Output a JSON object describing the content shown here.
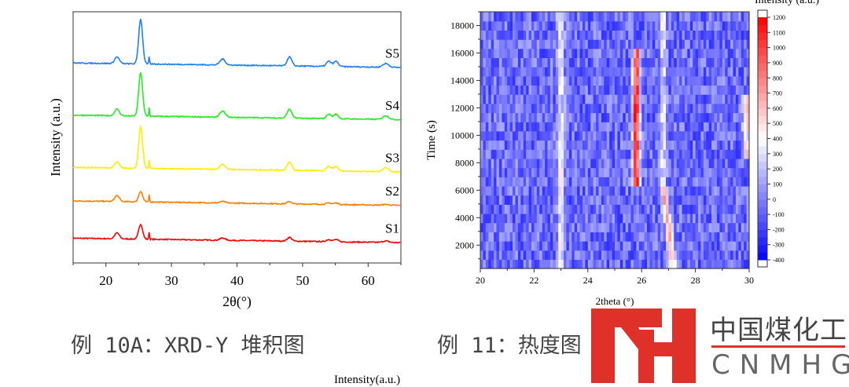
{
  "chart_data": [
    {
      "type": "line",
      "title": "",
      "xlabel": "2θ(°)",
      "ylabel": "Intensity (a.u.)",
      "xlim": [
        15,
        65
      ],
      "xticks": [
        "20",
        "30",
        "40",
        "50",
        "60"
      ],
      "stacked": true,
      "grid": false,
      "peaks_2theta": [
        21.7,
        25.3,
        26.6,
        37.8,
        48.0,
        54.0,
        55.1,
        62.7
      ],
      "series": [
        {
          "name": "S1",
          "color": "#ff0000",
          "offset": 0,
          "peak_heights": [
            8,
            20,
            10,
            3,
            5,
            3,
            3,
            2
          ]
        },
        {
          "name": "S2",
          "color": "#ff7f00",
          "offset": 50,
          "peak_heights": [
            8,
            14,
            10,
            2,
            3,
            2,
            2,
            1
          ]
        },
        {
          "name": "S3",
          "color": "#ffee00",
          "offset": 95,
          "peak_heights": [
            8,
            55,
            12,
            7,
            11,
            6,
            6,
            5
          ]
        },
        {
          "name": "S4",
          "color": "#22ee22",
          "offset": 165,
          "peak_heights": [
            9,
            58,
            12,
            8,
            12,
            6,
            6,
            5
          ]
        },
        {
          "name": "S5",
          "color": "#1e7fff",
          "offset": 235,
          "peak_heights": [
            9,
            60,
            10,
            8,
            12,
            7,
            7,
            5
          ]
        }
      ]
    },
    {
      "type": "heatmap",
      "title": "",
      "xlabel": "2theta (°)",
      "ylabel": "Time (s)",
      "xlim": [
        20,
        30
      ],
      "ylim": [
        300,
        19000
      ],
      "xticks": [
        "20",
        "22",
        "24",
        "26",
        "28",
        "30"
      ],
      "yticks": [
        "2000",
        "4000",
        "6000",
        "8000",
        "10000",
        "12000",
        "14000",
        "16000",
        "18000"
      ],
      "colorbar": {
        "title": "Intensity (a.u.)",
        "range": [
          -400,
          1200
        ],
        "ticks": [
          "1200",
          "1100",
          "1000",
          "900",
          "800",
          "700",
          "600",
          "500",
          "400",
          "300",
          "200",
          "100",
          "0",
          "-100",
          "-200",
          "-300",
          "-400"
        ],
        "colors": [
          "#0000ff",
          "#ffffff",
          "#ff0000"
        ]
      },
      "features": [
        {
          "2theta": 23.0,
          "time_range": [
            300,
            19000
          ],
          "level": 350
        },
        {
          "2theta": 25.8,
          "time_range": [
            6500,
            16000
          ],
          "level": 1100
        },
        {
          "2theta_start": 27.2,
          "2theta_end": 26.8,
          "time_range": [
            300,
            6500
          ],
          "level": 700
        },
        {
          "2theta": 26.8,
          "time_range": [
            6500,
            19000
          ],
          "level": 300
        },
        {
          "2theta": 29.9,
          "time_range": [
            8000,
            13000
          ],
          "level": 550
        }
      ]
    }
  ],
  "captions": {
    "left": "例 10A：XRD-Y 堆积图",
    "right": "例 11：热度图"
  },
  "logo": {
    "mark": "MH",
    "cn": "中国煤化工",
    "en": "CNMHG",
    "color": "#e0302a"
  },
  "bottom_label": "Intensity(a.u.)"
}
